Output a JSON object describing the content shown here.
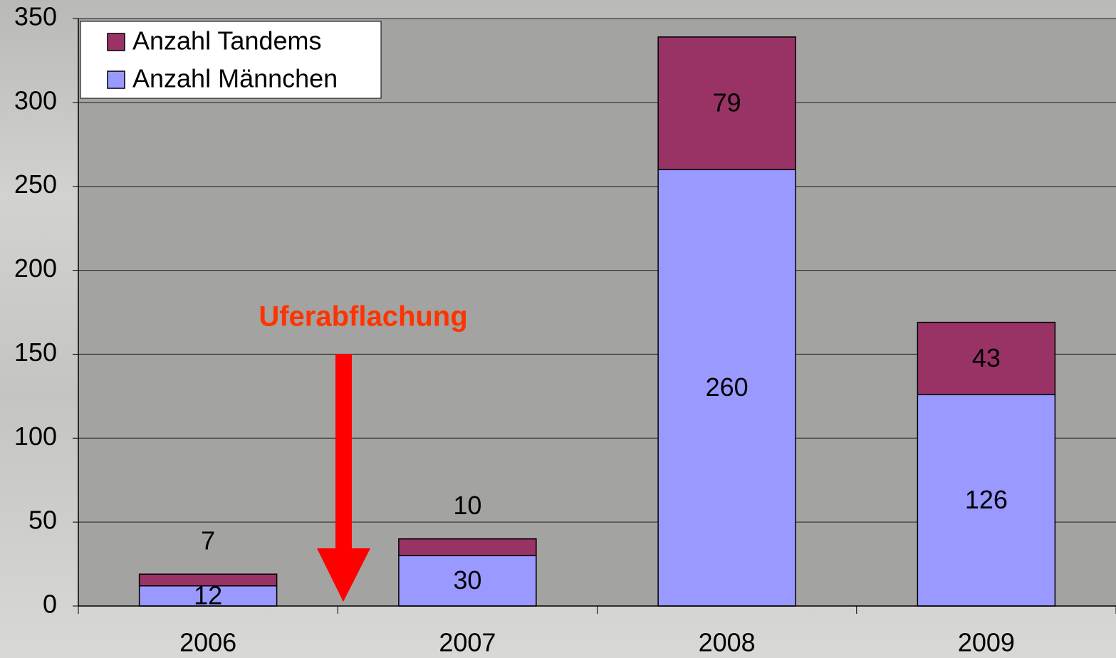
{
  "chart_data": {
    "type": "stacked_bar",
    "categories": [
      "2006",
      "2007",
      "2008",
      "2009"
    ],
    "series": [
      {
        "name": "Anzahl Männchen",
        "color": "#9999ff",
        "values": [
          12,
          30,
          260,
          126
        ]
      },
      {
        "name": "Anzahl Tandems",
        "color": "#993366",
        "values": [
          7,
          10,
          79,
          43
        ]
      }
    ],
    "ylim": [
      0,
      350
    ],
    "yticks": [
      0,
      50,
      100,
      150,
      200,
      250,
      300,
      350
    ],
    "grid": true,
    "legend": "upper left",
    "annotation": "Uferabflachung"
  }
}
